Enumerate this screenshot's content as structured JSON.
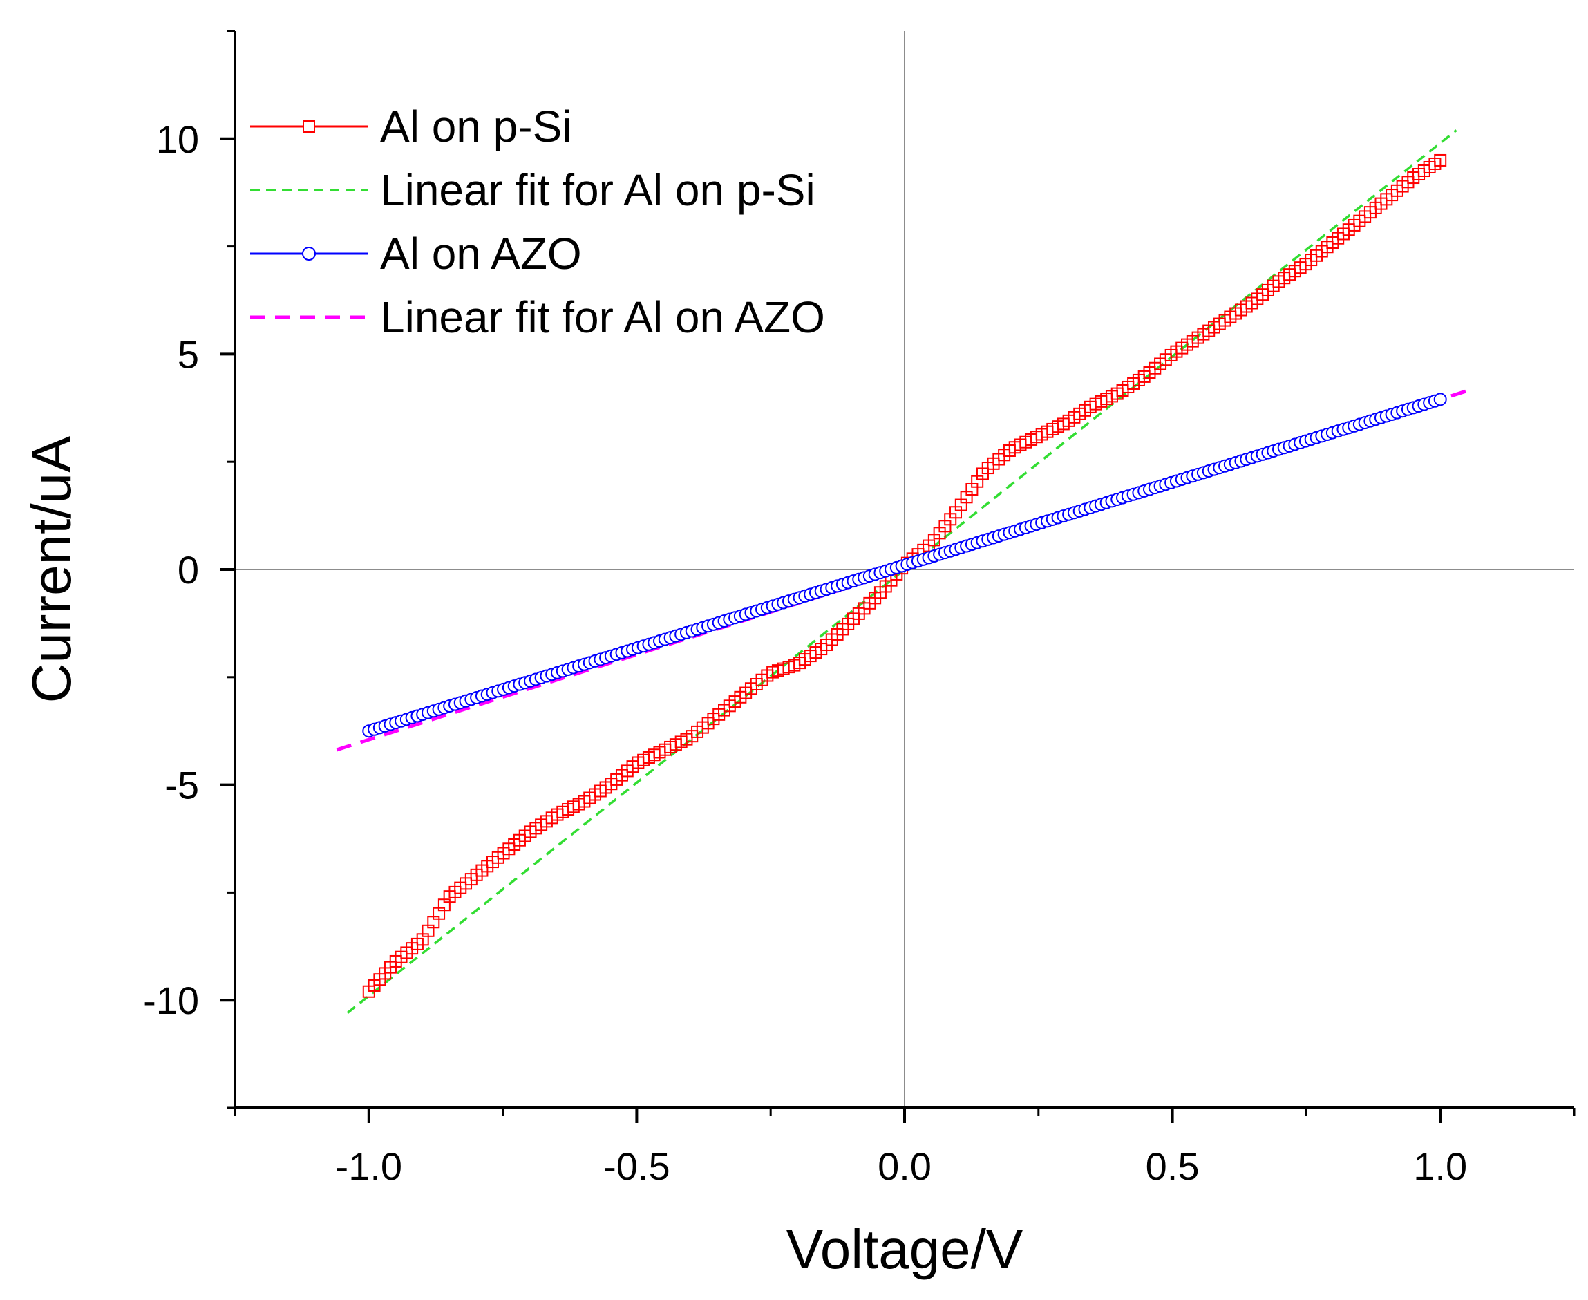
{
  "chart_data": {
    "type": "scatter",
    "title": "",
    "xlabel": "Voltage/V",
    "ylabel": "Current/uA",
    "xlim": [
      -1.25,
      1.25
    ],
    "ylim": [
      -12.5,
      12.5
    ],
    "grid": false,
    "zero_lines": true,
    "legend_position": "top-left",
    "x_ticks": [
      {
        "value": -1.0,
        "label": "-1.0"
      },
      {
        "value": -0.5,
        "label": "-0.5"
      },
      {
        "value": 0.0,
        "label": "0.0"
      },
      {
        "value": 0.5,
        "label": "0.5"
      },
      {
        "value": 1.0,
        "label": "1.0"
      }
    ],
    "x_minor_ticks": [
      -1.25,
      -0.75,
      -0.25,
      0.25,
      0.75,
      1.25
    ],
    "y_ticks": [
      {
        "value": -10,
        "label": "-10"
      },
      {
        "value": -5,
        "label": "-5"
      },
      {
        "value": 0,
        "label": "0"
      },
      {
        "value": 5,
        "label": "5"
      },
      {
        "value": 10,
        "label": "10"
      }
    ],
    "y_minor_ticks": [
      -12.5,
      -7.5,
      -2.5,
      2.5,
      7.5,
      12.5
    ],
    "series": [
      {
        "name": "Al on p-Si",
        "style": "markers",
        "marker": "square",
        "color": "#ff0000",
        "n_points": 200,
        "x_range": [
          -1.0,
          1.0
        ],
        "keypoints": [
          [
            -1.0,
            -9.8
          ],
          [
            -0.95,
            -9.1
          ],
          [
            -0.9,
            -8.6
          ],
          [
            -0.85,
            -7.6
          ],
          [
            -0.8,
            -7.1
          ],
          [
            -0.75,
            -6.6
          ],
          [
            -0.7,
            -6.1
          ],
          [
            -0.65,
            -5.7
          ],
          [
            -0.6,
            -5.4
          ],
          [
            -0.55,
            -5.0
          ],
          [
            -0.5,
            -4.5
          ],
          [
            -0.45,
            -4.2
          ],
          [
            -0.4,
            -3.9
          ],
          [
            -0.35,
            -3.4
          ],
          [
            -0.3,
            -2.9
          ],
          [
            -0.25,
            -2.4
          ],
          [
            -0.2,
            -2.2
          ],
          [
            -0.15,
            -1.8
          ],
          [
            -0.1,
            -1.2
          ],
          [
            -0.05,
            -0.6
          ],
          [
            0.0,
            0.1
          ],
          [
            0.05,
            0.6
          ],
          [
            0.1,
            1.4
          ],
          [
            0.15,
            2.3
          ],
          [
            0.2,
            2.8
          ],
          [
            0.25,
            3.1
          ],
          [
            0.3,
            3.4
          ],
          [
            0.35,
            3.8
          ],
          [
            0.4,
            4.1
          ],
          [
            0.45,
            4.5
          ],
          [
            0.5,
            5.0
          ],
          [
            0.55,
            5.4
          ],
          [
            0.6,
            5.8
          ],
          [
            0.65,
            6.2
          ],
          [
            0.7,
            6.7
          ],
          [
            0.75,
            7.1
          ],
          [
            0.8,
            7.6
          ],
          [
            0.85,
            8.1
          ],
          [
            0.9,
            8.6
          ],
          [
            0.95,
            9.1
          ],
          [
            1.0,
            9.5
          ]
        ]
      },
      {
        "name": "Linear fit for Al on p-Si",
        "style": "dashed-line",
        "color": "#33dd33",
        "line": {
          "x_start": -1.04,
          "x_end": 1.03,
          "slope": 9.9,
          "intercept": 0.0
        }
      },
      {
        "name": "Al on AZO",
        "style": "markers",
        "marker": "circle",
        "color": "#0000ff",
        "n_points": 200,
        "x_range": [
          -1.0,
          1.0
        ],
        "line": {
          "slope": 3.85,
          "intercept": 0.1
        }
      },
      {
        "name": "Linear fit for Al on AZO",
        "style": "dashed-line",
        "color": "#ff00ff",
        "line": {
          "x_start": -1.06,
          "x_end": 1.06,
          "slope": 3.95,
          "intercept": 0.0
        }
      }
    ]
  }
}
